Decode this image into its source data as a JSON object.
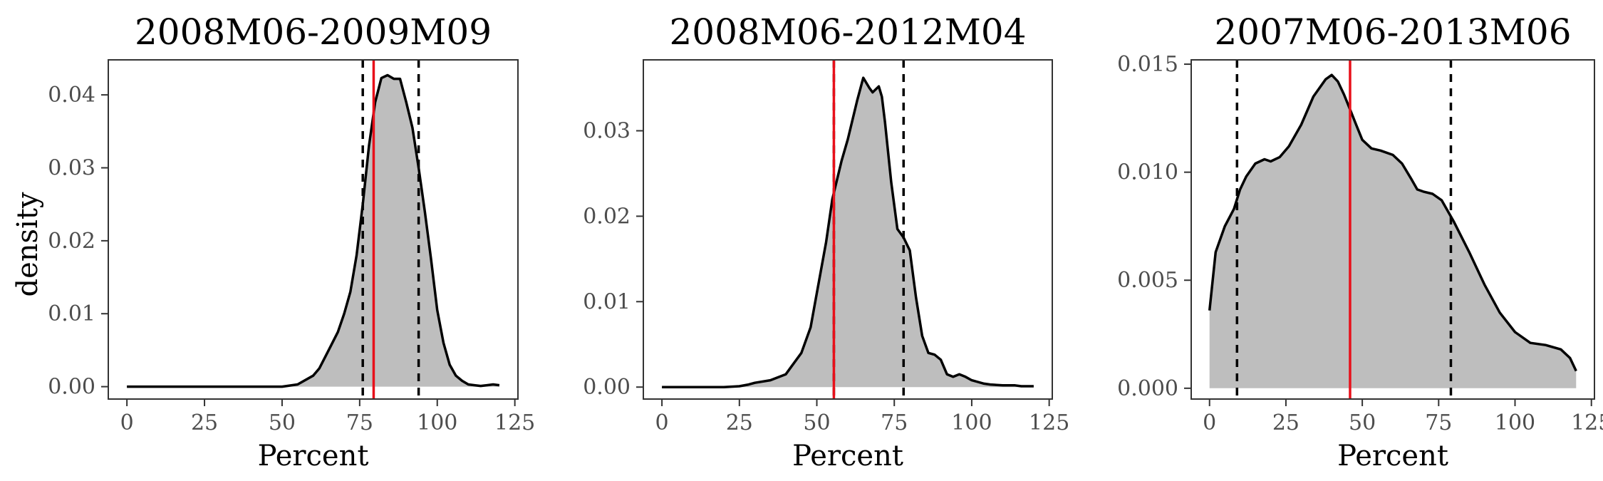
{
  "ylabel": "density",
  "xlabel": "Percent",
  "colors": {
    "fill": "#bebebe",
    "density_line": "#000000",
    "point_estimate_line": "#e8101a",
    "interval_lines": "#000000"
  },
  "chart_data": [
    {
      "type": "area",
      "title": "2008M06-2009M09",
      "xlabel": "Percent",
      "ylabel": "density",
      "xlim": [
        -6,
        126
      ],
      "ylim": [
        -0.0017,
        0.0448
      ],
      "x_ticks": [
        0,
        25,
        50,
        75,
        100,
        125
      ],
      "x_tick_labels": [
        "0",
        "25",
        "50",
        "75",
        "100",
        "125"
      ],
      "y_ticks": [
        0.0,
        0.01,
        0.02,
        0.03,
        0.04
      ],
      "y_tick_labels": [
        "0.00",
        "0.01",
        "0.02",
        "0.03",
        "0.04"
      ],
      "density": {
        "x": [
          0,
          10,
          20,
          30,
          40,
          50,
          55,
          60,
          62,
          65,
          68,
          70,
          72,
          74,
          76,
          78,
          80,
          82,
          84,
          86,
          88,
          90,
          92,
          94,
          96,
          98,
          100,
          102,
          104,
          106,
          108,
          110,
          112,
          114,
          116,
          118,
          120
        ],
        "y": [
          0,
          0,
          0,
          0,
          0,
          0,
          0.0003,
          0.0015,
          0.0025,
          0.005,
          0.0075,
          0.01,
          0.013,
          0.018,
          0.025,
          0.033,
          0.039,
          0.0423,
          0.0427,
          0.0422,
          0.0422,
          0.039,
          0.0355,
          0.03,
          0.024,
          0.0175,
          0.0105,
          0.006,
          0.003,
          0.0015,
          0.0008,
          0.0003,
          0.0002,
          0.0001,
          0.0002,
          0.0003,
          0.0002
        ]
      },
      "point_estimate": 79.5,
      "interval": [
        76,
        94
      ]
    },
    {
      "type": "area",
      "title": "2008M06-2012M04",
      "xlabel": "Percent",
      "ylabel": "",
      "xlim": [
        -6,
        126
      ],
      "ylim": [
        -0.0014,
        0.0383
      ],
      "x_ticks": [
        0,
        25,
        50,
        75,
        100,
        125
      ],
      "x_tick_labels": [
        "0",
        "25",
        "50",
        "75",
        "100",
        "125"
      ],
      "y_ticks": [
        0.0,
        0.01,
        0.02,
        0.03
      ],
      "y_tick_labels": [
        "0.00",
        "0.01",
        "0.02",
        "0.03"
      ],
      "density": {
        "x": [
          0,
          10,
          20,
          25,
          28,
          30,
          35,
          40,
          42,
          45,
          48,
          50,
          53,
          55,
          58,
          60,
          63,
          65,
          67,
          68,
          70,
          71,
          72,
          74,
          76,
          78,
          80,
          82,
          84,
          86,
          88,
          90,
          92,
          94,
          96,
          98,
          100,
          102,
          104,
          106,
          110,
          114,
          116,
          120
        ],
        "y": [
          0,
          0,
          0,
          0.0001,
          0.0003,
          0.0005,
          0.0008,
          0.0015,
          0.0025,
          0.004,
          0.007,
          0.011,
          0.017,
          0.022,
          0.0265,
          0.029,
          0.0335,
          0.0362,
          0.035,
          0.0345,
          0.0352,
          0.034,
          0.031,
          0.024,
          0.0185,
          0.0175,
          0.016,
          0.0105,
          0.006,
          0.004,
          0.0038,
          0.0032,
          0.0015,
          0.0012,
          0.0015,
          0.0012,
          0.0008,
          0.0006,
          0.0004,
          0.0003,
          0.0002,
          0.0002,
          0.0001,
          0.0001
        ]
      },
      "point_estimate": 55.5,
      "interval": [
        55.5,
        78
      ]
    },
    {
      "type": "area",
      "title": "2007M06-2013M06",
      "xlabel": "Percent",
      "ylabel": "",
      "xlim": [
        -6,
        126
      ],
      "ylim": [
        -0.0005,
        0.0152
      ],
      "x_ticks": [
        0,
        25,
        50,
        75,
        100,
        125
      ],
      "x_tick_labels": [
        "0",
        "25",
        "50",
        "75",
        "100",
        "125"
      ],
      "y_ticks": [
        0.0,
        0.005,
        0.01,
        0.015
      ],
      "y_tick_labels": [
        "0.000",
        "0.005",
        "0.010",
        "0.015"
      ],
      "density": {
        "x": [
          0,
          2,
          5,
          8,
          10,
          12,
          15,
          18,
          20,
          23,
          26,
          30,
          34,
          38,
          40,
          42,
          44,
          46,
          48,
          50,
          53,
          56,
          60,
          63,
          66,
          68,
          70,
          73,
          76,
          80,
          85,
          90,
          95,
          100,
          105,
          110,
          115,
          118,
          120
        ],
        "y": [
          0.0036,
          0.0063,
          0.0075,
          0.0083,
          0.0092,
          0.0098,
          0.0104,
          0.0106,
          0.0105,
          0.0107,
          0.0112,
          0.0122,
          0.0135,
          0.0143,
          0.0145,
          0.0142,
          0.0136,
          0.0129,
          0.0122,
          0.0115,
          0.0111,
          0.011,
          0.0108,
          0.0104,
          0.0097,
          0.0092,
          0.0091,
          0.009,
          0.0087,
          0.0077,
          0.0063,
          0.0048,
          0.0035,
          0.0026,
          0.0021,
          0.002,
          0.0018,
          0.0014,
          0.0008
        ]
      },
      "point_estimate": 46,
      "interval": [
        9,
        79
      ]
    }
  ]
}
